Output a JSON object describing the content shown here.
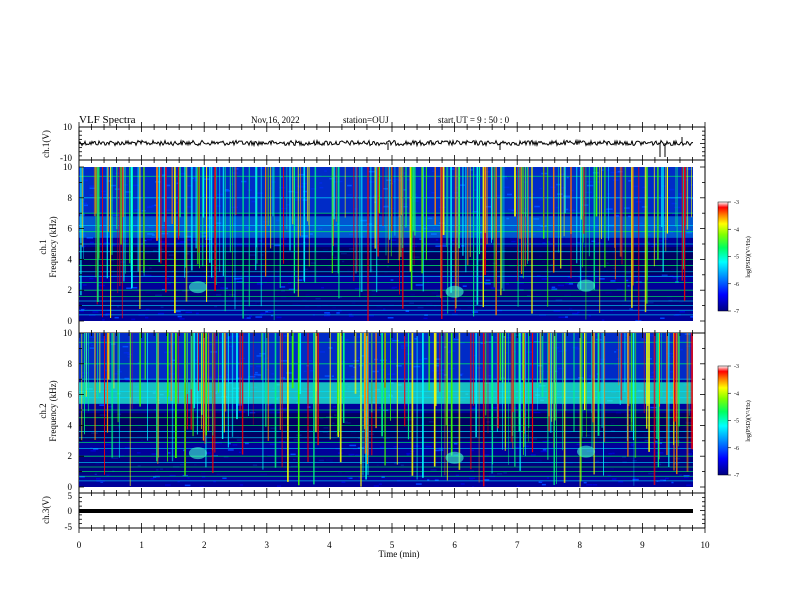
{
  "header": {
    "title": "VLF Spectra",
    "date": "Nov.16, 2022",
    "station": "station=OUJ",
    "start": "start  UT =   9 : 50 : 0"
  },
  "chart_data": [
    {
      "type": "line",
      "name": "ch1-waveform",
      "ylabel": "ch.1(V)",
      "ylim": [
        -10,
        10
      ],
      "yticks": [
        "10",
        "-10"
      ],
      "xlim": [
        0,
        10
      ],
      "baseline": 0
    },
    {
      "type": "heatmap",
      "name": "ch1-spectrogram",
      "ylabel_top": "ch.1",
      "ylabel": "Frequency (kHz)",
      "ylim": [
        0,
        10
      ],
      "yticks": [
        "0",
        "2",
        "4",
        "6",
        "8",
        "10"
      ],
      "xlim": [
        0,
        10
      ],
      "colorbar": {
        "label": "log(PSD)(V²/Hz)",
        "range": [
          -7,
          -3
        ],
        "ticks": [
          "-3",
          "-4",
          "-5",
          "-6",
          "-7"
        ]
      }
    },
    {
      "type": "heatmap",
      "name": "ch2-spectrogram",
      "ylabel_top": "ch.2",
      "ylabel": "Frequency (kHz)",
      "ylim": [
        0,
        10
      ],
      "yticks": [
        "0",
        "2",
        "4",
        "6",
        "8",
        "10"
      ],
      "xlim": [
        0,
        10
      ],
      "colorbar": {
        "label": "log(PSD)(V²/Hz)",
        "range": [
          -7,
          -3
        ],
        "ticks": [
          "-3",
          "-4",
          "-5",
          "-6",
          "-7"
        ]
      }
    },
    {
      "type": "line",
      "name": "ch3-waveform",
      "ylabel": "ch.3(V)",
      "ylim": [
        -5,
        5
      ],
      "yticks": [
        "5",
        "0",
        "-5"
      ],
      "xlim": [
        0,
        10
      ],
      "baseline": -0.5
    }
  ],
  "xaxis": {
    "label": "Time (min)",
    "ticks": [
      "0",
      "1",
      "2",
      "3",
      "4",
      "5",
      "6",
      "7",
      "8",
      "9",
      "10"
    ]
  },
  "colors": {
    "cmap": [
      "#000080",
      "#0000ff",
      "#0080ff",
      "#00ffff",
      "#00ff80",
      "#80ff00",
      "#ffff00",
      "#ff8000",
      "#ff0000",
      "#ffffff"
    ]
  }
}
